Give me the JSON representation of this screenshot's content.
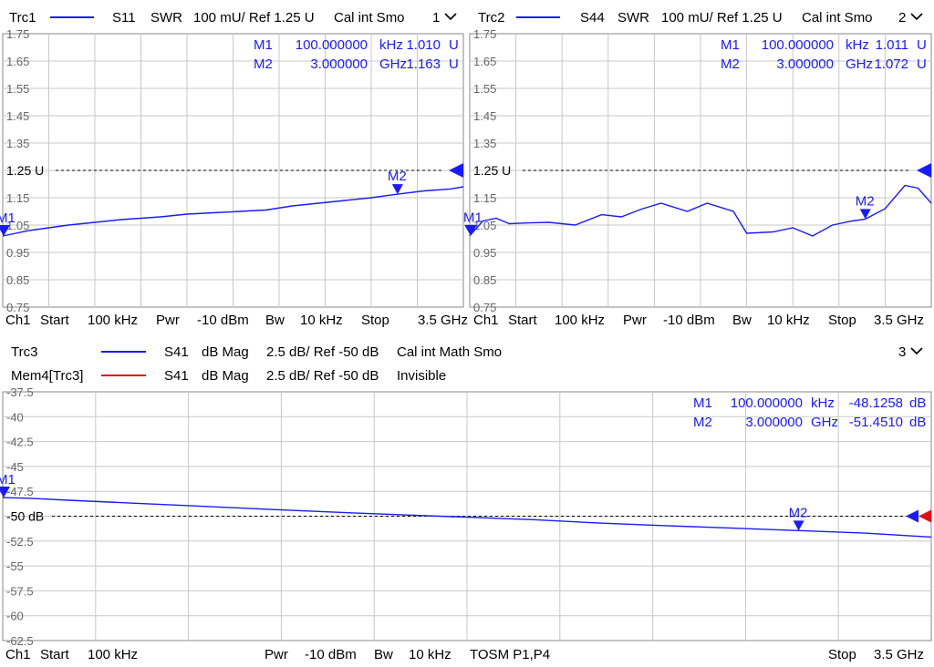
{
  "panels": [
    {
      "header": {
        "trace": "Trc1",
        "param": "S11",
        "format": "SWR",
        "scale": "100 mU/ Ref 1.25 U",
        "flags": "Cal int Smo",
        "win": "1"
      },
      "markers": [
        {
          "label": "M1",
          "freq": "100.000000",
          "unit": "kHz",
          "val": "1.010",
          "vunit": "U"
        },
        {
          "label": "M2",
          "freq": "3.000000",
          "unit": "GHz",
          "val": "1.163",
          "vunit": "U"
        }
      ],
      "ref_label": "1.25 U",
      "footer": {
        "ch": "Ch1",
        "start_l": "Start",
        "start_v": "100 kHz",
        "pwr_l": "Pwr",
        "pwr_v": "-10 dBm",
        "bw_l": "Bw",
        "bw_v": "10 kHz",
        "extra": "",
        "stop_l": "Stop",
        "stop_v": "3.5 GHz"
      }
    },
    {
      "header": {
        "trace": "Trc2",
        "param": "S44",
        "format": "SWR",
        "scale": "100 mU/ Ref 1.25 U",
        "flags": "Cal int Smo",
        "win": "2"
      },
      "markers": [
        {
          "label": "M1",
          "freq": "100.000000",
          "unit": "kHz",
          "val": "1.011",
          "vunit": "U"
        },
        {
          "label": "M2",
          "freq": "3.000000",
          "unit": "GHz",
          "val": "1.072",
          "vunit": "U"
        }
      ],
      "ref_label": "1.25 U",
      "footer": {
        "ch": "Ch1",
        "start_l": "Start",
        "start_v": "100 kHz",
        "pwr_l": "Pwr",
        "pwr_v": "-10 dBm",
        "bw_l": "Bw",
        "bw_v": "10 kHz",
        "extra": "",
        "stop_l": "Stop",
        "stop_v": "3.5 GHz"
      }
    },
    {
      "header": {
        "trace": "Trc3",
        "param": "S41",
        "format": "dB Mag",
        "scale": "2.5 dB/ Ref -50 dB",
        "flags": "Cal int Math Smo",
        "win": "3",
        "mem": {
          "trace": "Mem4[Trc3]",
          "param": "S41",
          "format": "dB Mag",
          "scale": "2.5 dB/ Ref -50 dB",
          "flags": "Invisible"
        }
      },
      "markers": [
        {
          "label": "M1",
          "freq": "100.000000",
          "unit": "kHz",
          "val": "-48.1258",
          "vunit": "dB"
        },
        {
          "label": "M2",
          "freq": "3.000000",
          "unit": "GHz",
          "val": "-51.4510",
          "vunit": "dB"
        }
      ],
      "ref_label": "-50 dB",
      "footer": {
        "ch": "Ch1",
        "start_l": "Start",
        "start_v": "100 kHz",
        "pwr_l": "Pwr",
        "pwr_v": "-10 dBm",
        "bw_l": "Bw",
        "bw_v": "10 kHz",
        "extra": "TOSM P1,P4",
        "stop_l": "Stop",
        "stop_v": "3.5 GHz"
      }
    }
  ],
  "colors": {
    "trace": "#1a1aff",
    "memory": "#e01010",
    "grid": "#c8c8c8",
    "tick": "#666666"
  },
  "chart_data": [
    {
      "type": "line",
      "x_unit": "GHz",
      "xlim": [
        0.0001,
        3.5
      ],
      "ylim": [
        0.75,
        1.75
      ],
      "ref": 1.25,
      "y_ticks": [
        "1.75",
        "1.65",
        "1.55",
        "1.45",
        "1.35",
        "1.25 U",
        "1.15",
        "1.05",
        "0.95",
        "0.85",
        "0.75"
      ],
      "grid": true,
      "series": [
        {
          "x": [
            0.0001,
            0.1,
            0.2,
            0.35,
            0.5,
            0.7,
            0.9,
            1.05,
            1.2,
            1.4,
            1.6,
            1.8,
            2.0,
            2.2,
            2.4,
            2.6,
            2.8,
            3.0,
            3.2,
            3.4,
            3.5
          ],
          "y": [
            1.01,
            1.02,
            1.03,
            1.04,
            1.05,
            1.06,
            1.07,
            1.075,
            1.08,
            1.09,
            1.095,
            1.1,
            1.105,
            1.12,
            1.13,
            1.14,
            1.15,
            1.163,
            1.175,
            1.182,
            1.19
          ]
        }
      ],
      "markers": [
        {
          "label": "M1",
          "x": 0.0001,
          "y": 1.01
        },
        {
          "label": "M2",
          "x": 3.0,
          "y": 1.163
        }
      ]
    },
    {
      "type": "line",
      "x_unit": "GHz",
      "xlim": [
        0.0001,
        3.5
      ],
      "ylim": [
        0.75,
        1.75
      ],
      "ref": 1.25,
      "y_ticks": [
        "1.75",
        "1.65",
        "1.55",
        "1.45",
        "1.35",
        "1.25 U",
        "1.15",
        "1.05",
        "0.95",
        "0.85",
        "0.75"
      ],
      "grid": true,
      "series": [
        {
          "x": [
            0.0001,
            0.1,
            0.2,
            0.3,
            0.45,
            0.6,
            0.8,
            1.0,
            1.15,
            1.3,
            1.45,
            1.65,
            1.8,
            2.0,
            2.1,
            2.3,
            2.45,
            2.6,
            2.75,
            2.9,
            3.0,
            3.15,
            3.3,
            3.4,
            3.5
          ],
          "y": [
            1.011,
            1.065,
            1.075,
            1.055,
            1.058,
            1.06,
            1.05,
            1.088,
            1.08,
            1.108,
            1.13,
            1.1,
            1.13,
            1.1,
            1.02,
            1.025,
            1.04,
            1.01,
            1.05,
            1.065,
            1.072,
            1.11,
            1.195,
            1.185,
            1.13
          ]
        }
      ],
      "markers": [
        {
          "label": "M1",
          "x": 0.0001,
          "y": 1.011
        },
        {
          "label": "M2",
          "x": 3.0,
          "y": 1.072
        }
      ]
    },
    {
      "type": "line",
      "x_unit": "GHz",
      "xlim": [
        0.0001,
        3.5
      ],
      "ylim": [
        -62.5,
        -37.5
      ],
      "ref": -50,
      "y_ticks": [
        "-37.5",
        "-40",
        "-42.5",
        "-45",
        "-47.5",
        "-50 dB",
        "-52.5",
        "-55",
        "-57.5",
        "-60",
        "-62.5"
      ],
      "grid": true,
      "series": [
        {
          "x": [
            0.0001,
            0.1,
            0.25,
            0.5,
            0.75,
            1.0,
            1.25,
            1.5,
            1.75,
            2.0,
            2.25,
            2.5,
            2.75,
            3.0,
            3.25,
            3.5
          ],
          "y": [
            -48.13,
            -48.2,
            -48.4,
            -48.7,
            -49.0,
            -49.3,
            -49.6,
            -49.85,
            -50.1,
            -50.35,
            -50.7,
            -50.95,
            -51.2,
            -51.45,
            -51.7,
            -52.1
          ]
        }
      ],
      "markers": [
        {
          "label": "M1",
          "x": 0.0001,
          "y": -48.1258
        },
        {
          "label": "M2",
          "x": 3.0,
          "y": -51.451
        }
      ]
    }
  ]
}
